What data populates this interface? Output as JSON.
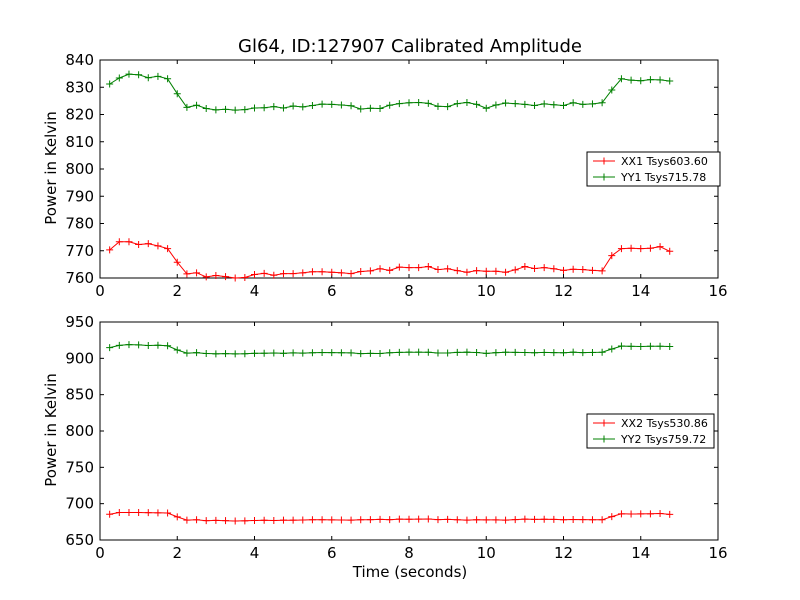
{
  "chart_data": [
    {
      "type": "line",
      "title": "Gl64, ID:127907 Calibrated Amplitude",
      "xlabel": "",
      "ylabel": "Power in Kelvin",
      "xlim": [
        0,
        16
      ],
      "ylim": [
        760,
        840
      ],
      "xticks": [
        0,
        2,
        4,
        6,
        8,
        10,
        12,
        14,
        16
      ],
      "yticks": [
        760,
        770,
        780,
        790,
        800,
        810,
        820,
        830,
        840
      ],
      "grid": false,
      "legend_position": "center-right",
      "marker": "plus",
      "x": [
        0.25,
        0.5,
        0.75,
        1.0,
        1.25,
        1.5,
        1.75,
        2.0,
        2.25,
        2.5,
        2.75,
        3.0,
        3.25,
        3.5,
        3.75,
        4.0,
        4.25,
        4.5,
        4.75,
        5.0,
        5.25,
        5.5,
        5.75,
        6.0,
        6.25,
        6.5,
        6.75,
        7.0,
        7.25,
        7.5,
        7.75,
        8.0,
        8.25,
        8.5,
        8.75,
        9.0,
        9.25,
        9.5,
        9.75,
        10.0,
        10.25,
        10.5,
        10.75,
        11.0,
        11.25,
        11.5,
        11.75,
        12.0,
        12.25,
        12.5,
        12.75,
        13.0,
        13.25,
        13.5,
        13.75,
        14.0,
        14.25,
        14.5,
        14.75
      ],
      "series": [
        {
          "name": "XX1 Tsys603.60",
          "color": "#ff0000",
          "values": [
            770.3,
            773.3,
            773.3,
            772.3,
            772.6,
            771.8,
            770.8,
            765.8,
            761.5,
            761.9,
            760.4,
            760.9,
            760.5,
            760.0,
            760.2,
            761.3,
            761.7,
            761.0,
            761.6,
            761.6,
            761.9,
            762.3,
            762.3,
            762.1,
            761.9,
            761.6,
            762.4,
            762.6,
            763.4,
            762.8,
            764.0,
            763.8,
            763.8,
            764.2,
            763.1,
            763.4,
            762.7,
            762.1,
            762.7,
            762.5,
            762.5,
            762.1,
            763.0,
            764.2,
            763.5,
            763.8,
            763.4,
            762.8,
            763.2,
            763.1,
            762.8,
            762.6,
            768.2,
            770.8,
            770.9,
            770.8,
            770.9,
            771.5,
            769.8
          ]
        },
        {
          "name": "YY1 Tsys715.78",
          "color": "#008000",
          "values": [
            831.2,
            833.4,
            834.8,
            834.6,
            833.5,
            834.0,
            833.1,
            827.6,
            822.6,
            823.4,
            822.2,
            821.7,
            821.9,
            821.6,
            821.8,
            822.4,
            822.5,
            822.9,
            822.4,
            823.1,
            822.8,
            823.3,
            823.8,
            823.7,
            823.5,
            823.2,
            822.0,
            822.3,
            822.2,
            823.4,
            824.0,
            824.3,
            824.4,
            824.1,
            823.0,
            822.9,
            824.0,
            824.4,
            823.7,
            822.3,
            823.5,
            824.2,
            824.0,
            823.7,
            823.3,
            823.9,
            823.6,
            823.3,
            824.3,
            823.7,
            823.9,
            824.3,
            829.0,
            833.1,
            832.6,
            832.4,
            832.8,
            832.7,
            832.3
          ]
        }
      ]
    },
    {
      "type": "line",
      "title": "",
      "xlabel": "Time (seconds)",
      "ylabel": "Power in Kelvin",
      "xlim": [
        0,
        16
      ],
      "ylim": [
        650,
        950
      ],
      "xticks": [
        0,
        2,
        4,
        6,
        8,
        10,
        12,
        14,
        16
      ],
      "yticks": [
        650,
        700,
        750,
        800,
        850,
        900,
        950
      ],
      "grid": false,
      "legend_position": "center-right",
      "marker": "plus",
      "x": [
        0.25,
        0.5,
        0.75,
        1.0,
        1.25,
        1.5,
        1.75,
        2.0,
        2.25,
        2.5,
        2.75,
        3.0,
        3.25,
        3.5,
        3.75,
        4.0,
        4.25,
        4.5,
        4.75,
        5.0,
        5.25,
        5.5,
        5.75,
        6.0,
        6.25,
        6.5,
        6.75,
        7.0,
        7.25,
        7.5,
        7.75,
        8.0,
        8.25,
        8.5,
        8.75,
        9.0,
        9.25,
        9.5,
        9.75,
        10.0,
        10.25,
        10.5,
        10.75,
        11.0,
        11.25,
        11.5,
        11.75,
        12.0,
        12.25,
        12.5,
        12.75,
        13.0,
        13.25,
        13.5,
        13.75,
        14.0,
        14.25,
        14.5,
        14.75
      ],
      "series": [
        {
          "name": "XX2 Tsys530.86",
          "color": "#ff0000",
          "values": [
            685.5,
            687.8,
            687.9,
            687.8,
            687.6,
            687.4,
            687.1,
            681.8,
            677.4,
            677.8,
            676.6,
            677.0,
            676.6,
            676.1,
            676.4,
            676.9,
            677.2,
            676.8,
            677.3,
            677.3,
            677.5,
            677.9,
            677.8,
            677.7,
            677.5,
            677.4,
            677.9,
            678.0,
            678.4,
            678.0,
            678.8,
            678.6,
            678.7,
            678.9,
            678.1,
            678.3,
            677.8,
            677.4,
            677.8,
            677.7,
            677.7,
            677.4,
            678.1,
            678.8,
            678.4,
            678.6,
            678.3,
            677.9,
            678.2,
            678.1,
            677.9,
            677.8,
            682.2,
            686.0,
            685.8,
            685.9,
            686.0,
            686.4,
            685.2
          ]
        },
        {
          "name": "YY2 Tsys759.72",
          "color": "#008000",
          "values": [
            914.8,
            917.8,
            918.9,
            918.5,
            917.6,
            918.0,
            917.3,
            911.5,
            907.2,
            907.8,
            906.6,
            906.2,
            906.5,
            906.1,
            906.3,
            906.9,
            907.0,
            907.3,
            906.9,
            907.5,
            907.2,
            907.6,
            908.0,
            907.9,
            907.7,
            907.5,
            906.5,
            906.8,
            906.7,
            907.7,
            908.2,
            908.5,
            908.5,
            908.3,
            907.4,
            907.3,
            908.2,
            908.5,
            908.0,
            906.8,
            907.8,
            908.4,
            908.2,
            908.0,
            907.6,
            908.1,
            907.9,
            907.6,
            908.5,
            907.9,
            908.1,
            908.4,
            912.9,
            916.9,
            916.5,
            916.3,
            916.7,
            916.6,
            916.3
          ]
        }
      ]
    }
  ]
}
